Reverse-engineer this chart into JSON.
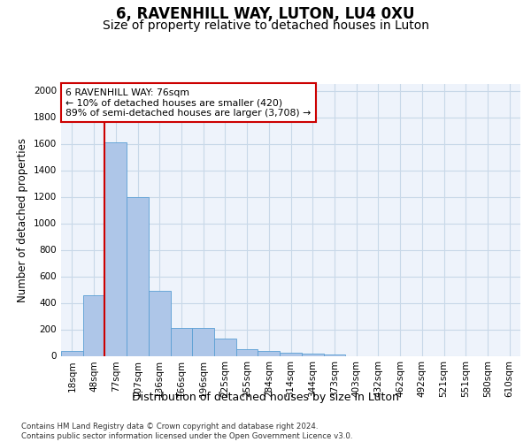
{
  "title": "6, RAVENHILL WAY, LUTON, LU4 0XU",
  "subtitle": "Size of property relative to detached houses in Luton",
  "xlabel": "Distribution of detached houses by size in Luton",
  "ylabel": "Number of detached properties",
  "categories": [
    "18sqm",
    "48sqm",
    "77sqm",
    "107sqm",
    "136sqm",
    "166sqm",
    "196sqm",
    "225sqm",
    "255sqm",
    "284sqm",
    "314sqm",
    "344sqm",
    "373sqm",
    "403sqm",
    "432sqm",
    "462sqm",
    "492sqm",
    "521sqm",
    "551sqm",
    "580sqm",
    "610sqm"
  ],
  "values": [
    35,
    460,
    1610,
    1195,
    490,
    210,
    210,
    130,
    50,
    40,
    25,
    15,
    10,
    0,
    0,
    0,
    0,
    0,
    0,
    0,
    0
  ],
  "bar_color": "#aec6e8",
  "bar_edge_color": "#5a9fd4",
  "vline_color": "#cc0000",
  "vline_index": 1.5,
  "annotation_text": "6 RAVENHILL WAY: 76sqm\n← 10% of detached houses are smaller (420)\n89% of semi-detached houses are larger (3,708) →",
  "annotation_box_color": "#ffffff",
  "annotation_box_edge": "#cc0000",
  "ylim": [
    0,
    2050
  ],
  "yticks": [
    0,
    200,
    400,
    600,
    800,
    1000,
    1200,
    1400,
    1600,
    1800,
    2000
  ],
  "title_fontsize": 12,
  "subtitle_fontsize": 10,
  "xlabel_fontsize": 9,
  "ylabel_fontsize": 8.5,
  "tick_fontsize": 7.5,
  "footer_text": "Contains HM Land Registry data © Crown copyright and database right 2024.\nContains public sector information licensed under the Open Government Licence v3.0.",
  "background_color": "#ffffff",
  "grid_color": "#c8d8e8",
  "axes_bg_color": "#eef3fb"
}
